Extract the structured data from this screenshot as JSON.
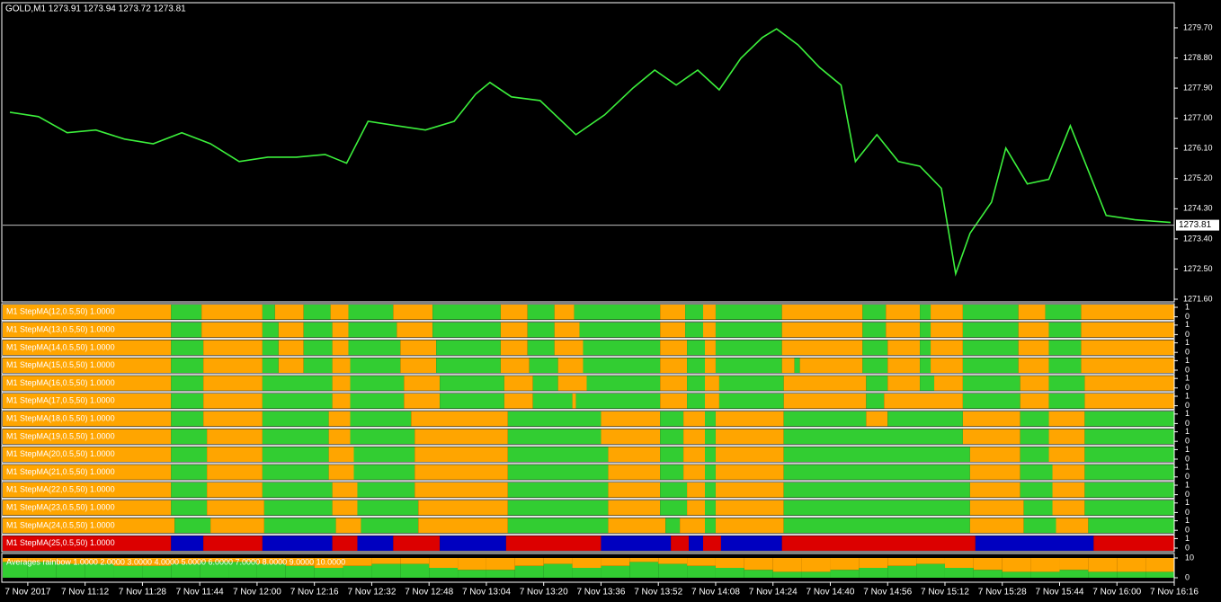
{
  "chart_data": [
    {
      "type": "line",
      "title": "GOLD,M1  1273.91 1273.94 1273.72 1273.81",
      "color": "#3cf03c",
      "x": [
        651,
        659,
        667,
        675,
        683,
        691,
        699,
        707,
        715,
        723,
        731,
        739,
        745,
        751,
        759,
        767,
        775,
        781,
        785,
        791,
        799,
        809,
        817,
        825,
        831,
        837,
        843,
        849,
        855,
        861,
        865,
        871,
        877,
        883,
        887,
        893,
        899,
        905,
        911,
        915,
        919,
        925,
        929,
        935,
        941,
        947,
        951,
        957,
        965,
        975
      ],
      "values": [
        1277.18,
        1277.05,
        1276.57,
        1276.65,
        1276.38,
        1276.24,
        1276.57,
        1276.24,
        1275.71,
        1275.84,
        1275.84,
        1275.92,
        1275.66,
        1276.91,
        1276.78,
        1276.65,
        1276.91,
        1277.72,
        1278.07,
        1277.64,
        1277.53,
        1276.51,
        1277.1,
        1277.91,
        1278.44,
        1277.99,
        1278.44,
        1277.85,
        1278.79,
        1279.41,
        1279.67,
        1279.19,
        1278.52,
        1277.99,
        1275.71,
        1276.51,
        1275.71,
        1275.57,
        1274.91,
        1272.36,
        1273.57,
        1274.5,
        1276.11,
        1275.04,
        1275.18,
        1276.78,
        1275.71,
        1274.1,
        1273.97,
        1273.89
      ],
      "last_price": 1273.81,
      "xlim": [
        649,
        976
      ],
      "xticks": [
        {
          "value": 656,
          "label": "7 Nov 2017"
        },
        {
          "value": 672,
          "label": "7 Nov 11:12"
        },
        {
          "value": 688,
          "label": "7 Nov 11:28"
        },
        {
          "value": 704,
          "label": "7 Nov 11:44"
        },
        {
          "value": 720,
          "label": "7 Nov 12:00"
        },
        {
          "value": 736,
          "label": "7 Nov 12:16"
        },
        {
          "value": 752,
          "label": "7 Nov 12:32"
        },
        {
          "value": 768,
          "label": "7 Nov 12:48"
        },
        {
          "value": 784,
          "label": "7 Nov 13:04"
        },
        {
          "value": 800,
          "label": "7 Nov 13:20"
        },
        {
          "value": 816,
          "label": "7 Nov 13:36"
        },
        {
          "value": 832,
          "label": "7 Nov 13:52"
        },
        {
          "value": 848,
          "label": "7 Nov 14:08"
        },
        {
          "value": 864,
          "label": "7 Nov 14:24"
        },
        {
          "value": 880,
          "label": "7 Nov 14:40"
        },
        {
          "value": 896,
          "label": "7 Nov 14:56"
        },
        {
          "value": 912,
          "label": "7 Nov 15:12"
        },
        {
          "value": 928,
          "label": "7 Nov 15:28"
        },
        {
          "value": 944,
          "label": "7 Nov 15:44"
        },
        {
          "value": 960,
          "label": "7 Nov 16:00"
        },
        {
          "value": 976,
          "label": "7 Nov 16:16"
        }
      ],
      "ylim": [
        1271.52,
        1280.45
      ],
      "yticks": [
        {
          "value": 1279.7,
          "label": "1279.70"
        },
        {
          "value": 1278.8,
          "label": "1278.80"
        },
        {
          "value": 1277.9,
          "label": "1277.90"
        },
        {
          "value": 1277,
          "label": "1277.00"
        },
        {
          "value": 1276.1,
          "label": "1276.10"
        },
        {
          "value": 1275.2,
          "label": "1275.20"
        },
        {
          "value": 1274.3,
          "label": "1274.30"
        },
        {
          "value": 1273.4,
          "label": "1273.40"
        },
        {
          "value": 1272.5,
          "label": "1272.50"
        },
        {
          "value": 1271.6,
          "label": "1271.60"
        }
      ]
    },
    {
      "type": "bands",
      "title": "M1 StepMA(12,0.5,50) 1.0000",
      "colors": [
        "#ffa500",
        "#32cd32"
      ],
      "ylim": [
        0,
        1
      ],
      "yticks": [
        1,
        0
      ],
      "breaks": [
        696,
        704.5,
        721.5,
        725,
        733,
        740.5,
        745.5,
        758,
        769,
        788,
        795.5,
        803,
        808.5,
        832.5,
        839.5,
        844.5,
        848,
        866.5,
        889,
        895.5,
        905,
        908,
        917,
        932.5,
        940,
        950
      ]
    },
    {
      "type": "bands",
      "title": "M1 StepMA(13,0.5,50) 1.0000",
      "colors": [
        "#ffa500",
        "#32cd32"
      ],
      "ylim": [
        0,
        1
      ],
      "yticks": [
        1,
        0
      ],
      "breaks": [
        696,
        704.5,
        721.5,
        726,
        733,
        741,
        745.5,
        759,
        769,
        788,
        795.5,
        803,
        810,
        832.5,
        839.5,
        844.5,
        848,
        866.5,
        889,
        895.5,
        905,
        908,
        917,
        932.5,
        941,
        950
      ]
    },
    {
      "type": "bands",
      "title": "M1 StepMA(14,0.5,50) 1.0000",
      "colors": [
        "#ffa500",
        "#32cd32"
      ],
      "ylim": [
        0,
        1
      ],
      "yticks": [
        1,
        0
      ],
      "breaks": [
        696,
        705,
        721.5,
        726,
        733,
        741,
        745.5,
        760,
        770,
        788,
        795.5,
        803,
        811,
        832.5,
        840,
        845,
        848,
        866.5,
        889,
        896,
        905,
        908,
        917,
        932.5,
        941,
        950
      ]
    },
    {
      "type": "bands",
      "title": "M1 StepMA(15,0.5,50) 1.0000",
      "colors": [
        "#ffa500",
        "#32cd32"
      ],
      "ylim": [
        0,
        1
      ],
      "yticks": [
        1,
        0
      ],
      "breaks": [
        696,
        705,
        721.5,
        726,
        733,
        741,
        746,
        760,
        770,
        788,
        796,
        804,
        811,
        832.5,
        840,
        845,
        848,
        866.5,
        870,
        871.5,
        889,
        896,
        905,
        908,
        917,
        932.5,
        941,
        950
      ]
    },
    {
      "type": "bands",
      "title": "M1 StepMA(16,0.5,50) 1.0000",
      "colors": [
        "#ffa500",
        "#32cd32"
      ],
      "ylim": [
        0,
        1
      ],
      "yticks": [
        1,
        0
      ],
      "breaks": [
        696,
        705,
        721.5,
        741,
        746,
        761,
        771,
        789,
        797,
        804,
        812,
        832.5,
        840,
        845,
        849,
        867,
        890,
        896,
        905,
        909,
        917,
        933,
        941,
        951
      ]
    },
    {
      "type": "bands",
      "title": "M1 StepMA(17,0.5,50) 1.0000",
      "colors": [
        "#ffa500",
        "#32cd32"
      ],
      "ylim": [
        0,
        1
      ],
      "yticks": [
        1,
        0
      ],
      "breaks": [
        696,
        705,
        721.5,
        741,
        746,
        761,
        771,
        789,
        797,
        808,
        809,
        832.5,
        840,
        845,
        849,
        867,
        890,
        895,
        917,
        933,
        941,
        951
      ]
    },
    {
      "type": "bands",
      "title": "M1 StepMA(18,0.5,50) 1.0000",
      "colors": [
        "#ffa500",
        "#32cd32"
      ],
      "ylim": [
        0,
        1
      ],
      "yticks": [
        1,
        0
      ],
      "breaks": [
        696,
        705,
        721.5,
        740,
        746,
        763,
        790,
        816,
        832.5,
        839,
        845,
        848,
        867,
        890,
        896,
        917,
        933,
        941,
        951
      ]
    },
    {
      "type": "bands",
      "title": "M1 StepMA(19,0.5,50) 1.0000",
      "colors": [
        "#ffa500",
        "#32cd32"
      ],
      "ylim": [
        0,
        1
      ],
      "yticks": [
        1,
        0
      ],
      "breaks": [
        696,
        706,
        721.5,
        740,
        746,
        764,
        790,
        816,
        832.5,
        839,
        845,
        848,
        867,
        917,
        933,
        941,
        951
      ]
    },
    {
      "type": "bands",
      "title": "M1 StepMA(20,0.5,50) 1.0000",
      "colors": [
        "#ffa500",
        "#32cd32"
      ],
      "ylim": [
        0,
        1
      ],
      "yticks": [
        1,
        0
      ],
      "breaks": [
        696,
        706,
        721.5,
        740,
        747,
        764,
        790,
        818,
        832.5,
        839,
        845,
        848,
        867,
        919,
        933,
        941,
        951
      ]
    },
    {
      "type": "bands",
      "title": "M1 StepMA(21,0.5,50) 1.0000",
      "colors": [
        "#ffa500",
        "#32cd32"
      ],
      "ylim": [
        0,
        1
      ],
      "yticks": [
        1,
        0
      ],
      "breaks": [
        696,
        706,
        721.5,
        740,
        747,
        764,
        790,
        818,
        832.5,
        839,
        845,
        848,
        867,
        919,
        933,
        942,
        951
      ]
    },
    {
      "type": "bands",
      "title": "M1 StepMA(22,0.5,50) 1.0000",
      "colors": [
        "#ffa500",
        "#32cd32"
      ],
      "ylim": [
        0,
        1
      ],
      "yticks": [
        1,
        0
      ],
      "breaks": [
        696,
        706,
        721.5,
        741,
        748,
        764,
        790,
        818,
        832.5,
        840,
        845,
        848,
        867,
        919,
        933,
        942,
        951
      ]
    },
    {
      "type": "bands",
      "title": "M1 StepMA(23,0.5,50) 1.0000",
      "colors": [
        "#ffa500",
        "#32cd32"
      ],
      "ylim": [
        0,
        1
      ],
      "yticks": [
        1,
        0
      ],
      "breaks": [
        696,
        706,
        722,
        741,
        748,
        765,
        790,
        818,
        832.5,
        840,
        845,
        848,
        867,
        919,
        934,
        942,
        951
      ]
    },
    {
      "type": "bands",
      "title": "M1 StepMA(24,0.5,50) 1.0000",
      "colors": [
        "#ffa500",
        "#32cd32"
      ],
      "ylim": [
        0,
        1
      ],
      "yticks": [
        1,
        0
      ],
      "breaks": [
        697,
        707,
        722,
        742,
        749,
        765,
        790,
        818,
        834,
        838,
        845,
        848,
        867,
        919,
        934,
        943,
        952
      ]
    },
    {
      "type": "bands",
      "title": "M1 StepMA(25,0.5,50) 1.0000",
      "colors": [
        "#dc0000",
        "#0000c0"
      ],
      "ylim": [
        0,
        1
      ],
      "yticks": [
        1,
        0
      ],
      "breaks": [
        696,
        705,
        721.5,
        741,
        748,
        758,
        771,
        789.5,
        816,
        835.5,
        840.5,
        844.5,
        849.5,
        866.5,
        920.5,
        953.5
      ]
    },
    {
      "type": "levels",
      "title": "Averages rainbow 1.0000 2.0000 3.0000 4.0000 5.0000 6.0000 7.0000 8.0000 9.0000 10.0000",
      "colors": [
        "#32cd32",
        "#ffa500"
      ],
      "ylim": [
        0,
        10
      ],
      "yticks": [
        10,
        0
      ],
      "x": [
        652,
        660,
        668,
        676,
        684,
        692,
        700,
        708,
        716,
        724,
        732,
        740,
        748,
        756,
        764,
        772,
        780,
        788,
        796,
        804,
        812,
        820,
        828,
        836,
        844,
        852,
        860,
        868,
        876,
        884,
        892,
        900,
        908,
        916,
        924,
        932,
        940,
        948,
        956,
        964,
        972
      ],
      "values": [
        8,
        8,
        7,
        7,
        6,
        6,
        7,
        8,
        8,
        7,
        6,
        5,
        6,
        7,
        7,
        5,
        4,
        4,
        6,
        7,
        5,
        6,
        8,
        7,
        6,
        5,
        4,
        3,
        3,
        4,
        5,
        6,
        7,
        5,
        4,
        3,
        3,
        4,
        3,
        3,
        3
      ]
    }
  ]
}
